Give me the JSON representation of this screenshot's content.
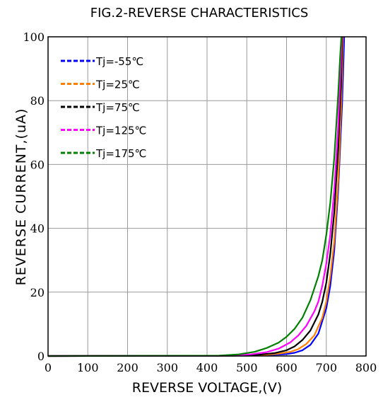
{
  "chart_data": {
    "type": "line",
    "title": "FIG.2-REVERSE CHARACTERISTICS",
    "xlabel": "REVERSE VOLTAGE,(V)",
    "ylabel": "REVERSE CURRENT,(uA)",
    "xlim": [
      0,
      800
    ],
    "ylim": [
      0,
      100
    ],
    "xticks": [
      0,
      100,
      200,
      300,
      400,
      500,
      600,
      700,
      800
    ],
    "yticks": [
      0,
      20,
      40,
      60,
      80,
      100
    ],
    "grid": true,
    "legend_position": "top-left",
    "series": [
      {
        "name": "Tj=-55℃",
        "color": "#0000ff",
        "x": [
          0,
          500,
          560,
          600,
          620,
          640,
          660,
          680,
          700,
          710,
          720,
          730,
          740,
          745
        ],
        "y": [
          0,
          0.1,
          0.3,
          0.6,
          1.0,
          1.8,
          3.5,
          7,
          15,
          22,
          33,
          52,
          80,
          100
        ]
      },
      {
        "name": "Tj=25℃",
        "color": "#ff8000",
        "x": [
          0,
          480,
          540,
          580,
          610,
          630,
          650,
          670,
          690,
          700,
          710,
          720,
          730,
          738,
          742
        ],
        "y": [
          0,
          0.1,
          0.3,
          0.7,
          1.3,
          2.2,
          3.8,
          6.5,
          12,
          17,
          25,
          36,
          55,
          80,
          100
        ]
      },
      {
        "name": "Tj=75℃",
        "color": "#000000",
        "x": [
          0,
          470,
          530,
          570,
          600,
          620,
          640,
          660,
          680,
          690,
          700,
          710,
          720,
          730,
          737,
          740
        ],
        "y": [
          0,
          0.1,
          0.4,
          0.9,
          1.8,
          3.0,
          5.0,
          8,
          13,
          17,
          23,
          32,
          45,
          65,
          85,
          100
        ]
      },
      {
        "name": "Tj=125℃",
        "color": "#ff00ff",
        "x": [
          0,
          450,
          510,
          550,
          580,
          610,
          630,
          650,
          670,
          680,
          690,
          700,
          710,
          720,
          730,
          736,
          739
        ],
        "y": [
          0,
          0.1,
          0.5,
          1.2,
          2.3,
          4.3,
          6.5,
          9.5,
          14,
          17,
          22,
          29,
          38,
          52,
          72,
          90,
          100
        ]
      },
      {
        "name": "Tj=175℃",
        "color": "#008000",
        "x": [
          0,
          430,
          480,
          520,
          550,
          580,
          600,
          620,
          640,
          660,
          680,
          690,
          700,
          710,
          720,
          730,
          735,
          738
        ],
        "y": [
          0,
          0.1,
          0.5,
          1.3,
          2.5,
          4.2,
          6.0,
          8.5,
          12,
          17.5,
          25,
          30,
          38,
          48,
          62,
          82,
          94,
          100
        ]
      }
    ]
  }
}
